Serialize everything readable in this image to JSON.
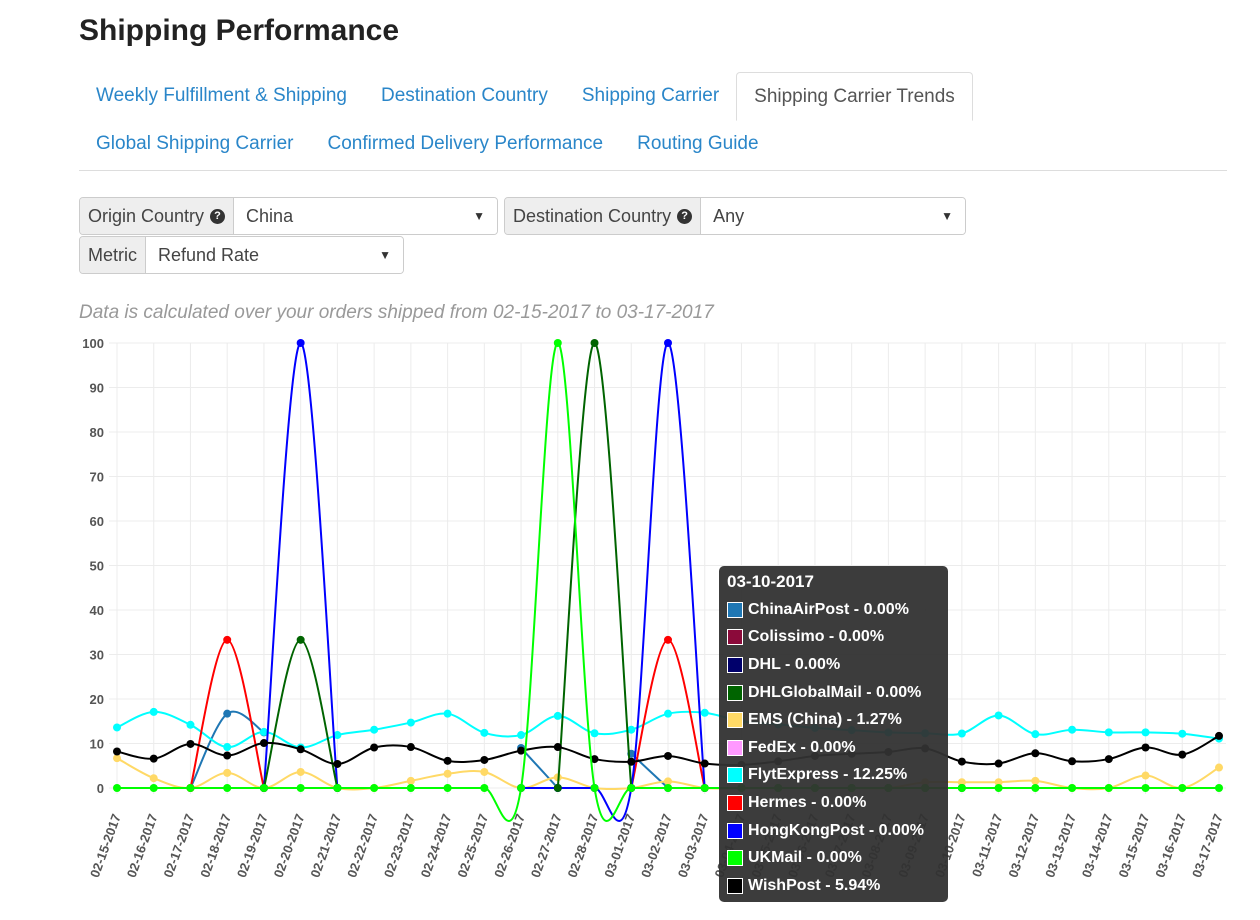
{
  "page": {
    "title": "Shipping Performance"
  },
  "tabs": {
    "row1": [
      {
        "label": "Weekly Fulfillment & Shipping",
        "active": false
      },
      {
        "label": "Destination Country",
        "active": false
      },
      {
        "label": "Shipping Carrier",
        "active": false
      },
      {
        "label": "Shipping Carrier Trends",
        "active": true
      }
    ],
    "row2": [
      {
        "label": "Global Shipping Carrier",
        "active": false
      },
      {
        "label": "Confirmed Delivery Performance",
        "active": false
      },
      {
        "label": "Routing Guide",
        "active": false
      }
    ]
  },
  "filters": {
    "origin": {
      "label": "Origin Country",
      "value": "China"
    },
    "destination": {
      "label": "Destination Country",
      "value": "Any"
    },
    "metric": {
      "label": "Metric",
      "value": "Refund Rate"
    }
  },
  "note": "Data is calculated over your orders shipped from 02-15-2017 to 03-17-2017",
  "tooltip": {
    "date": "03-10-2017",
    "rows": [
      {
        "label": "ChinaAirPost - 0.00%",
        "color": "#1f77b4"
      },
      {
        "label": "Colissimo - 0.00%",
        "color": "#8b0a3a"
      },
      {
        "label": "DHL - 0.00%",
        "color": "#00006b"
      },
      {
        "label": "DHLGlobalMail - 0.00%",
        "color": "#006400"
      },
      {
        "label": "EMS (China) - 1.27%",
        "color": "#ffd966"
      },
      {
        "label": "FedEx - 0.00%",
        "color": "#ff99ff"
      },
      {
        "label": "FlytExpress - 12.25%",
        "color": "#00ffff"
      },
      {
        "label": "Hermes - 0.00%",
        "color": "#ff0000"
      },
      {
        "label": "HongKongPost - 0.00%",
        "color": "#0000ff"
      },
      {
        "label": "UKMail - 0.00%",
        "color": "#00ff00"
      },
      {
        "label": "WishPost - 5.94%",
        "color": "#000000"
      }
    ]
  },
  "chart_data": {
    "type": "line",
    "ylim": [
      0,
      100
    ],
    "yticks": [
      "0",
      "10",
      "20",
      "30",
      "40",
      "50",
      "60",
      "70",
      "80",
      "90",
      "100"
    ],
    "grid": true,
    "categories": [
      "02-15-2017",
      "02-16-2017",
      "02-17-2017",
      "02-18-2017",
      "02-19-2017",
      "02-20-2017",
      "02-21-2017",
      "02-22-2017",
      "02-23-2017",
      "02-24-2017",
      "02-25-2017",
      "02-26-2017",
      "02-27-2017",
      "02-28-2017",
      "03-01-2017",
      "03-02-2017",
      "03-03-2017",
      "03-04-2017",
      "03-05-2017",
      "03-06-2017",
      "03-07-2017",
      "03-08-2017",
      "03-09-2017",
      "03-10-2017",
      "03-11-2017",
      "03-12-2017",
      "03-13-2017",
      "03-14-2017",
      "03-15-2017",
      "03-16-2017",
      "03-17-2017"
    ],
    "series": [
      {
        "name": "ChinaAirPost",
        "color": "#1f77b4",
        "values": [
          null,
          null,
          0,
          16.7,
          12.5,
          null,
          null,
          null,
          null,
          null,
          null,
          9,
          0,
          null,
          7.7,
          0,
          null,
          null,
          null,
          null,
          null,
          null,
          null,
          null,
          null,
          null,
          null,
          null,
          null,
          null,
          null
        ]
      },
      {
        "name": "EMS (China)",
        "color": "#ffd966",
        "values": [
          6.7,
          2.2,
          0,
          3.4,
          0,
          3.6,
          0,
          0,
          1.6,
          3.2,
          3.6,
          0,
          2.4,
          0,
          0,
          1.5,
          0,
          0,
          0,
          0,
          0,
          0,
          1.3,
          1.3,
          1.3,
          1.6,
          0,
          0,
          2.8,
          0,
          4.6
        ]
      },
      {
        "name": "FlytExpress",
        "color": "#00ffff",
        "values": [
          13.6,
          17.1,
          14.2,
          9.2,
          12.6,
          9.1,
          11.9,
          13.1,
          14.7,
          16.7,
          12.4,
          11.9,
          16.2,
          12.3,
          13.1,
          16.7,
          16.9,
          15,
          14.3,
          13.5,
          13,
          12.5,
          12.3,
          12.25,
          16.3,
          12.1,
          13.1,
          12.5,
          12.5,
          12.2,
          11.1
        ]
      },
      {
        "name": "Hermes",
        "color": "#ff0000",
        "values": [
          null,
          null,
          0,
          33.3,
          0,
          null,
          null,
          null,
          null,
          null,
          null,
          null,
          null,
          null,
          0,
          33.3,
          0,
          null,
          null,
          null,
          null,
          null,
          null,
          null,
          null,
          null,
          null,
          null,
          null,
          null,
          null
        ]
      },
      {
        "name": "HongKongPost",
        "color": "#0000ff",
        "values": [
          null,
          null,
          null,
          null,
          0,
          100,
          0,
          null,
          null,
          null,
          null,
          0,
          0,
          0,
          0,
          100,
          0,
          null,
          null,
          null,
          null,
          null,
          null,
          null,
          null,
          null,
          null,
          null,
          null,
          null,
          null
        ]
      },
      {
        "name": "DHLGlobalMail",
        "color": "#006400",
        "values": [
          null,
          null,
          null,
          null,
          0,
          33.3,
          0,
          null,
          null,
          null,
          null,
          null,
          0,
          100,
          0,
          null,
          null,
          0,
          0,
          0,
          0,
          0,
          0,
          0,
          null,
          null,
          null,
          null,
          null,
          null,
          null
        ]
      },
      {
        "name": "WishPost",
        "color": "#000000",
        "values": [
          8.2,
          6.6,
          9.9,
          7.3,
          10.1,
          8.7,
          5.4,
          9.1,
          9.2,
          6.1,
          6.3,
          8.4,
          9.2,
          6.5,
          5.9,
          7.2,
          5.5,
          5.2,
          6,
          7.2,
          7.7,
          8.1,
          8.9,
          5.94,
          5.5,
          7.8,
          6,
          6.5,
          9.1,
          7.5,
          11.7
        ]
      },
      {
        "name": "UKMail",
        "color": "#00ff00",
        "values": [
          0,
          0,
          0,
          0,
          0,
          0,
          0,
          0,
          0,
          0,
          0,
          0,
          100,
          0,
          0,
          0,
          0,
          0,
          0,
          0,
          0,
          0,
          0,
          0,
          0,
          0,
          0,
          0,
          0,
          0,
          0
        ]
      }
    ]
  }
}
